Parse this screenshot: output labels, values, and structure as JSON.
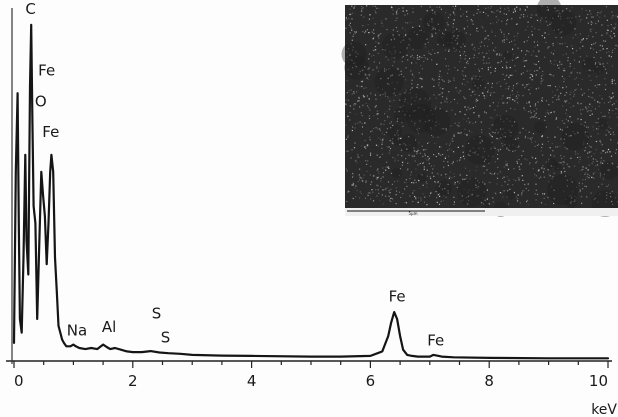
{
  "chart_data": {
    "type": "line",
    "title": "",
    "xlabel": "",
    "ylabel": "",
    "x_unit_label": "keV",
    "xlim": [
      0,
      10
    ],
    "ylim": [
      0,
      100
    ],
    "x_ticks": [
      0,
      2,
      4,
      6,
      8,
      10
    ],
    "x_tick_labels": [
      "0",
      "2",
      "4",
      "6",
      "8",
      "10"
    ],
    "grid": false,
    "series": [
      {
        "x": [
          0.0,
          0.03,
          0.06,
          0.08,
          0.1,
          0.13,
          0.16,
          0.19,
          0.21,
          0.24,
          0.27,
          0.29,
          0.31,
          0.33,
          0.36,
          0.39,
          0.42,
          0.46,
          0.49,
          0.52,
          0.55,
          0.58,
          0.61,
          0.63,
          0.66,
          0.69,
          0.72,
          0.75,
          0.78,
          0.81,
          0.84,
          0.88,
          0.95,
          1.0,
          1.04,
          1.1,
          1.2,
          1.3,
          1.4,
          1.5,
          1.56,
          1.62,
          1.7,
          1.8,
          1.9,
          2.0,
          2.15,
          2.3,
          2.45,
          2.6,
          2.8,
          3.0,
          3.5,
          4.0,
          5.0,
          5.5,
          6.0,
          6.2,
          6.3,
          6.35,
          6.4,
          6.45,
          6.5,
          6.55,
          6.62,
          6.7,
          6.8,
          6.9,
          7.0,
          7.06,
          7.12,
          7.2,
          7.4,
          8.0,
          9.0,
          10.0
        ],
        "y": [
          5,
          55,
          78,
          40,
          12,
          8,
          30,
          60,
          35,
          25,
          80,
          98,
          70,
          45,
          40,
          12,
          30,
          55,
          48,
          42,
          28,
          40,
          55,
          60,
          55,
          30,
          20,
          10,
          8,
          6,
          5,
          4,
          4,
          4.5,
          4,
          3.5,
          3.2,
          3.5,
          3.2,
          4.5,
          3.8,
          3.2,
          3.5,
          3.0,
          2.5,
          2.3,
          2.3,
          2.6,
          2.2,
          2.0,
          1.8,
          1.5,
          1.3,
          1.2,
          1.0,
          1.0,
          1.2,
          2.5,
          7,
          11,
          14,
          12,
          7,
          3,
          1.5,
          1.2,
          1.0,
          1.0,
          1.0,
          1.5,
          1.3,
          1.0,
          0.8,
          0.6,
          0.5,
          0.5
        ]
      }
    ],
    "annotations": [
      {
        "text": "C",
        "x": 0.28,
        "y": 100
      },
      {
        "text": "Fe",
        "x": 0.55,
        "y": 82
      },
      {
        "text": "O",
        "x": 0.45,
        "y": 73
      },
      {
        "text": "Fe",
        "x": 0.62,
        "y": 64
      },
      {
        "text": "Na",
        "x": 1.06,
        "y": 6
      },
      {
        "text": "Al",
        "x": 1.6,
        "y": 7
      },
      {
        "text": "S",
        "x": 2.4,
        "y": 11
      },
      {
        "text": "S",
        "x": 2.55,
        "y": 4
      },
      {
        "text": "Fe",
        "x": 6.45,
        "y": 16
      },
      {
        "text": "Fe",
        "x": 7.1,
        "y": 3
      }
    ],
    "inset": {
      "description_free": true,
      "scale_bar_label": "5µm"
    }
  }
}
